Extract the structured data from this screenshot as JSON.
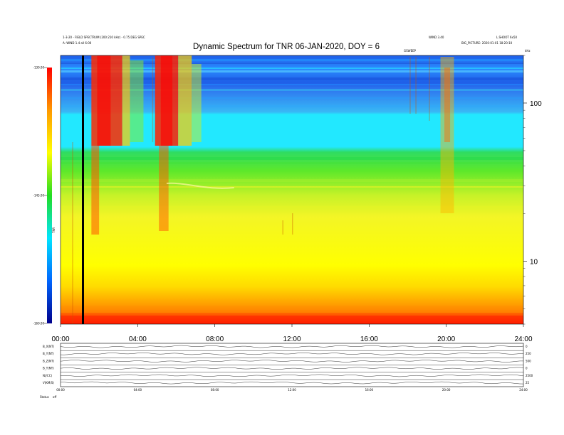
{
  "header": {
    "left_line1": "1-3-20 - FIELD SPECTRUM (200:210 kHz) - 0.75 DEG SPEC",
    "left_line2": "A: WIND 1.4 all 6:00",
    "right_a": "WIND 3.40",
    "right_b": "L.SHOOT 6x50",
    "right_line2": "BIG_PICTURE: 2020-01-01 18:20:10",
    "small_mid": "GSWEEP",
    "hz_label": "kHz"
  },
  "chart_data": {
    "type": "heatmap",
    "title": "Dynamic Spectrum for TNR 06-JAN-2020, DOY = 6",
    "xlabel": "",
    "ylabel": "",
    "x_ticks": [
      "00:00",
      "04:00",
      "08:00",
      "12:00",
      "16:00",
      "20:00",
      "24:00"
    ],
    "x_range_hours": [
      0,
      24
    ],
    "y_scale": "log",
    "y_range_khz": [
      4,
      200
    ],
    "y_ticks": [
      "100",
      "10"
    ],
    "colorbar": {
      "ticks": [
        "-130.00",
        "-145.00",
        "-160.00"
      ],
      "range": [
        -160,
        -130
      ],
      "label": "TNR",
      "colors": [
        "#00008b",
        "#0066ff",
        "#00e5ff",
        "#22dd22",
        "#ffff00",
        "#ff9900",
        "#ff0000"
      ]
    },
    "panels": {
      "left_labels": [
        "B_X(NT)",
        "B_Y(NT)",
        "B_Z(NT)",
        "B_T(NT)",
        "N(/CC)",
        "V(KM/S)"
      ],
      "right_labels": [
        "0",
        "250",
        "500",
        "0",
        "2500",
        "25"
      ],
      "x_ticks": [
        "00:00",
        "04:00",
        "08:00",
        "12:00",
        "16:00",
        "20:00",
        "24:00"
      ],
      "footer_left": "Status",
      "footer_left2": "off"
    }
  }
}
